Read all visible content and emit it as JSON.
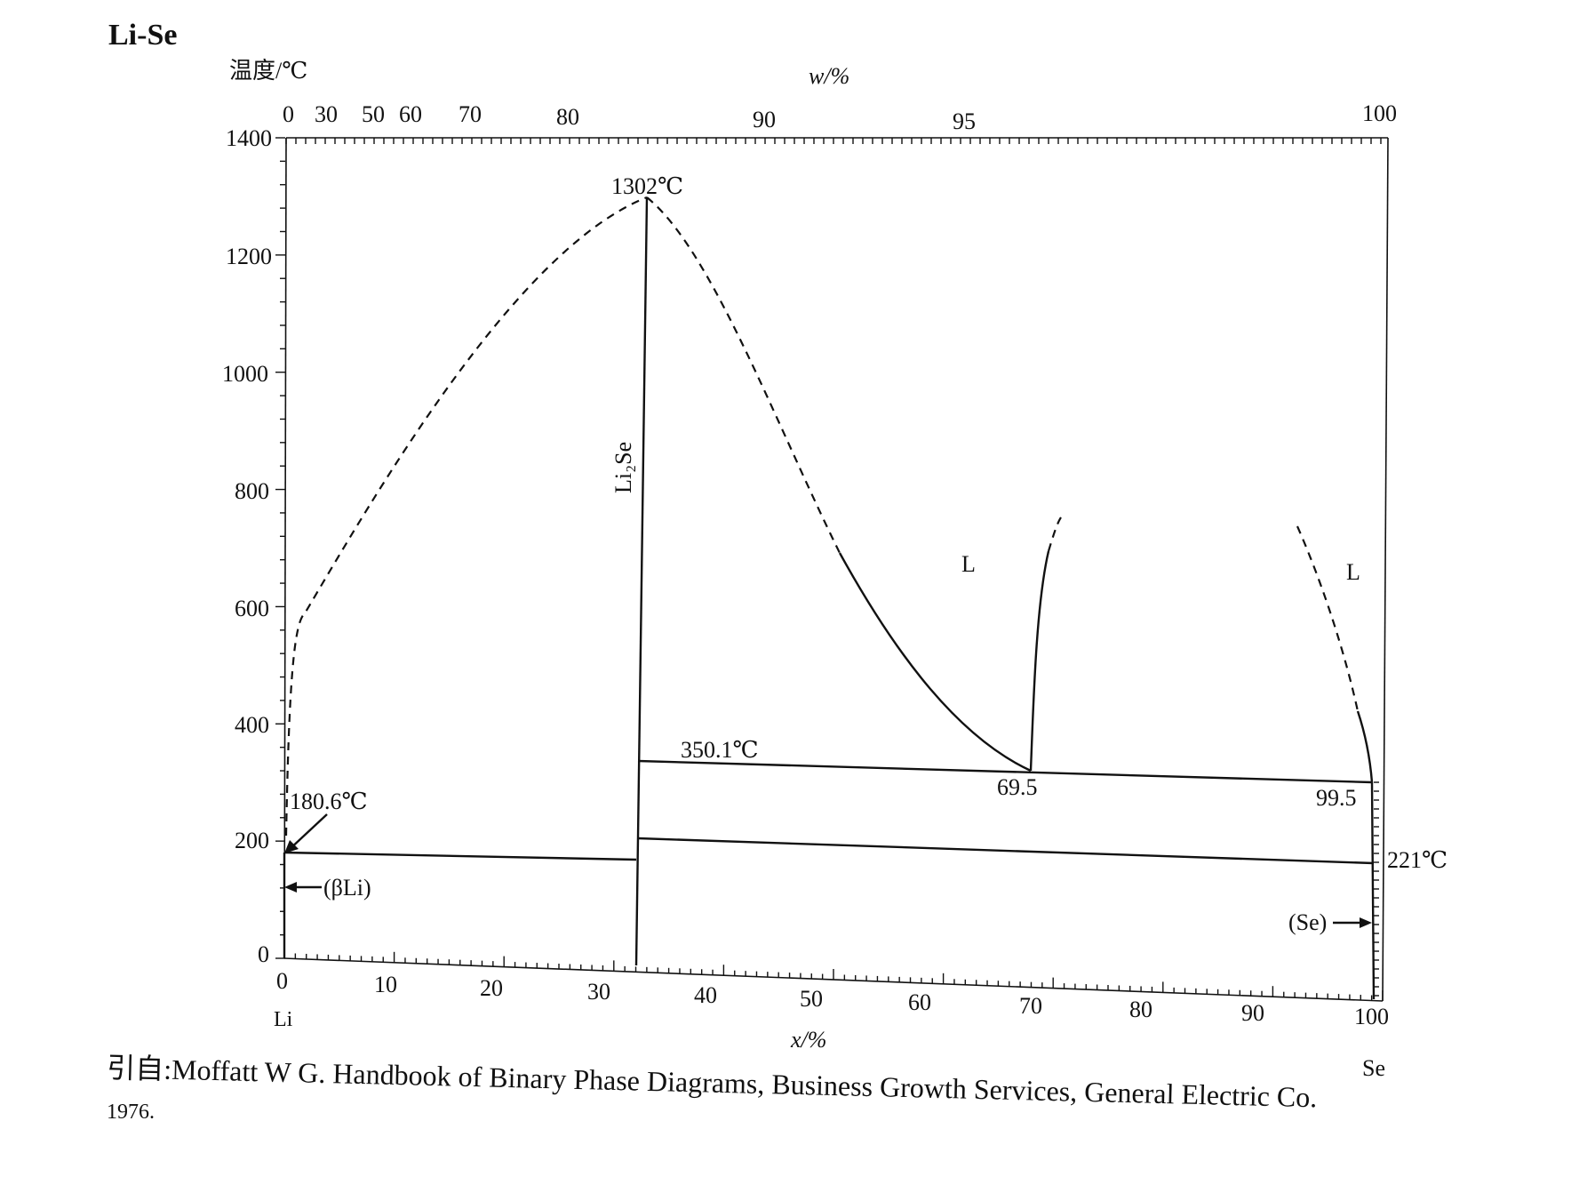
{
  "title": "Li-Se",
  "top_axis": {
    "label": "w/%",
    "ticks": [
      "0",
      "30",
      "50",
      "60",
      "70",
      "80",
      "90",
      "95",
      "100"
    ]
  },
  "left_axis": {
    "label": "温度/℃",
    "ticks": [
      "1400",
      "1200",
      "1000",
      "800",
      "600",
      "400",
      "200",
      "0"
    ]
  },
  "bottom_axis": {
    "label": "x/%",
    "ticks": [
      "0",
      "10",
      "20",
      "30",
      "40",
      "50",
      "60",
      "70",
      "80",
      "90",
      "100"
    ],
    "left_element": "Li",
    "right_element": "Se"
  },
  "annotations": {
    "max_temp": "1302℃",
    "compound": "Li₂Se",
    "liquid_mid": "L",
    "liquid_right": "L",
    "eutectic_temp": "350.1℃",
    "eutectic_comp_1": "69.5",
    "eutectic_comp_2": "99.5",
    "li_melting": "180.6℃",
    "se_melting": "221℃",
    "beta_li": "(βLi)",
    "se_phase": "(Se)"
  },
  "caption": {
    "line1": "引自:Moffatt W G.  Handbook of Binary Phase Diagrams, Business Growth Services, General Electric Co.",
    "line2": "1976."
  }
}
